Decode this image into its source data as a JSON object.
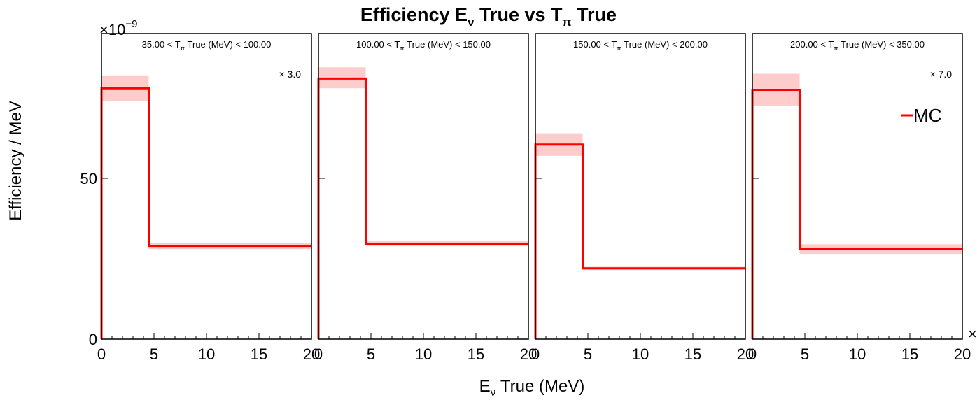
{
  "title": {
    "main": "Efficiency E",
    "nu_sub": "ν",
    "mid": " True vs T",
    "pi_sub": "π",
    "end": " True"
  },
  "y_axis": {
    "label": "Efficiency / MeV",
    "exponent_prefix": "×10",
    "exponent": "−9"
  },
  "x_axis": {
    "label_main": "E",
    "label_sub": "ν",
    "label_end": " True (MeV)",
    "overflow_mark": "×"
  },
  "legend": {
    "label": "MC",
    "line_color": "#ff0000"
  },
  "colors": {
    "line": "#ff0000",
    "band": "#ffcccc",
    "frame": "#000000"
  },
  "chart_data": [
    {
      "type": "histogram",
      "panel_label": {
        "prefix": "35.00 < T",
        "sub": "π",
        "suffix": " True (MeV) < 100.00"
      },
      "scale_label": "× 3.0",
      "bin_edges": [
        0,
        4.5,
        20
      ],
      "values": [
        78,
        29
      ],
      "band_low": [
        74,
        28
      ],
      "band_high": [
        82,
        30
      ],
      "xlim": [
        0,
        20
      ],
      "ylim": [
        0,
        95
      ],
      "x_ticks": [
        "0",
        "5",
        "10",
        "15",
        "20"
      ],
      "y_ticks": [
        "0",
        "50"
      ]
    },
    {
      "type": "histogram",
      "panel_label": {
        "prefix": "100.00 < T",
        "sub": "π",
        "suffix": " True (MeV) < 150.00"
      },
      "scale_label": "",
      "bin_edges": [
        0,
        4.5,
        20
      ],
      "values": [
        81,
        29.5
      ],
      "band_low": [
        78,
        29
      ],
      "band_high": [
        84.5,
        30.5
      ],
      "xlim": [
        0,
        20
      ],
      "ylim": [
        0,
        95
      ],
      "x_ticks": [
        "0",
        "5",
        "10",
        "15",
        "20"
      ],
      "y_ticks": []
    },
    {
      "type": "histogram",
      "panel_label": {
        "prefix": "150.00 < T",
        "sub": "π",
        "suffix": " True (MeV) < 200.00"
      },
      "scale_label": "",
      "bin_edges": [
        0,
        4.5,
        20
      ],
      "values": [
        60.5,
        22
      ],
      "band_low": [
        57,
        21.5
      ],
      "band_high": [
        64,
        22.5
      ],
      "xlim": [
        0,
        20
      ],
      "ylim": [
        0,
        95
      ],
      "x_ticks": [
        "0",
        "5",
        "10",
        "15",
        "20"
      ],
      "y_ticks": []
    },
    {
      "type": "histogram",
      "panel_label": {
        "prefix": "200.00 < T",
        "sub": "π",
        "suffix": " True (MeV) < 350.00"
      },
      "scale_label": "× 7.0",
      "bin_edges": [
        0,
        4.5,
        20
      ],
      "values": [
        77.5,
        28
      ],
      "band_low": [
        72.5,
        26.5
      ],
      "band_high": [
        82.5,
        29.5
      ],
      "xlim": [
        0,
        20
      ],
      "ylim": [
        0,
        95
      ],
      "x_ticks": [
        "0",
        "5",
        "10",
        "15",
        "20"
      ],
      "y_ticks": []
    }
  ]
}
